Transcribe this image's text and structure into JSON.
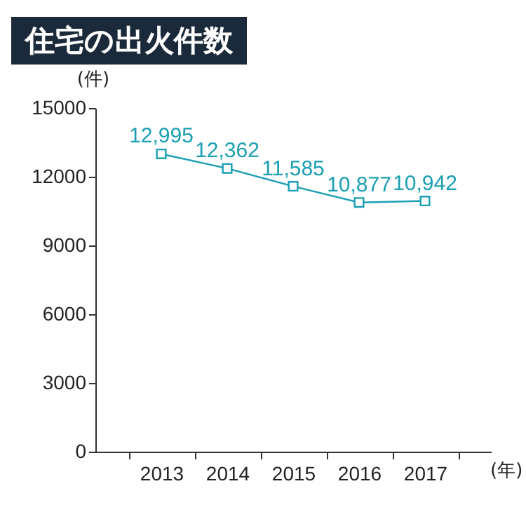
{
  "chart_data": {
    "type": "line",
    "title": "住宅の出火件数",
    "xlabel": "(年)",
    "ylabel": "(件)",
    "categories": [
      "2013",
      "2014",
      "2015",
      "2016",
      "2017"
    ],
    "series": [
      {
        "color": "#1a9fb3",
        "values": [
          12995,
          12362,
          11585,
          10877,
          10942
        ],
        "value_labels": [
          "12,995",
          "12,362",
          "11,585",
          "10,877",
          "10,942"
        ]
      }
    ],
    "ylim": [
      0,
      15000
    ],
    "yticks": [
      0,
      3000,
      6000,
      9000,
      12000,
      15000
    ],
    "marker": "square",
    "grid": false,
    "legend": false
  }
}
